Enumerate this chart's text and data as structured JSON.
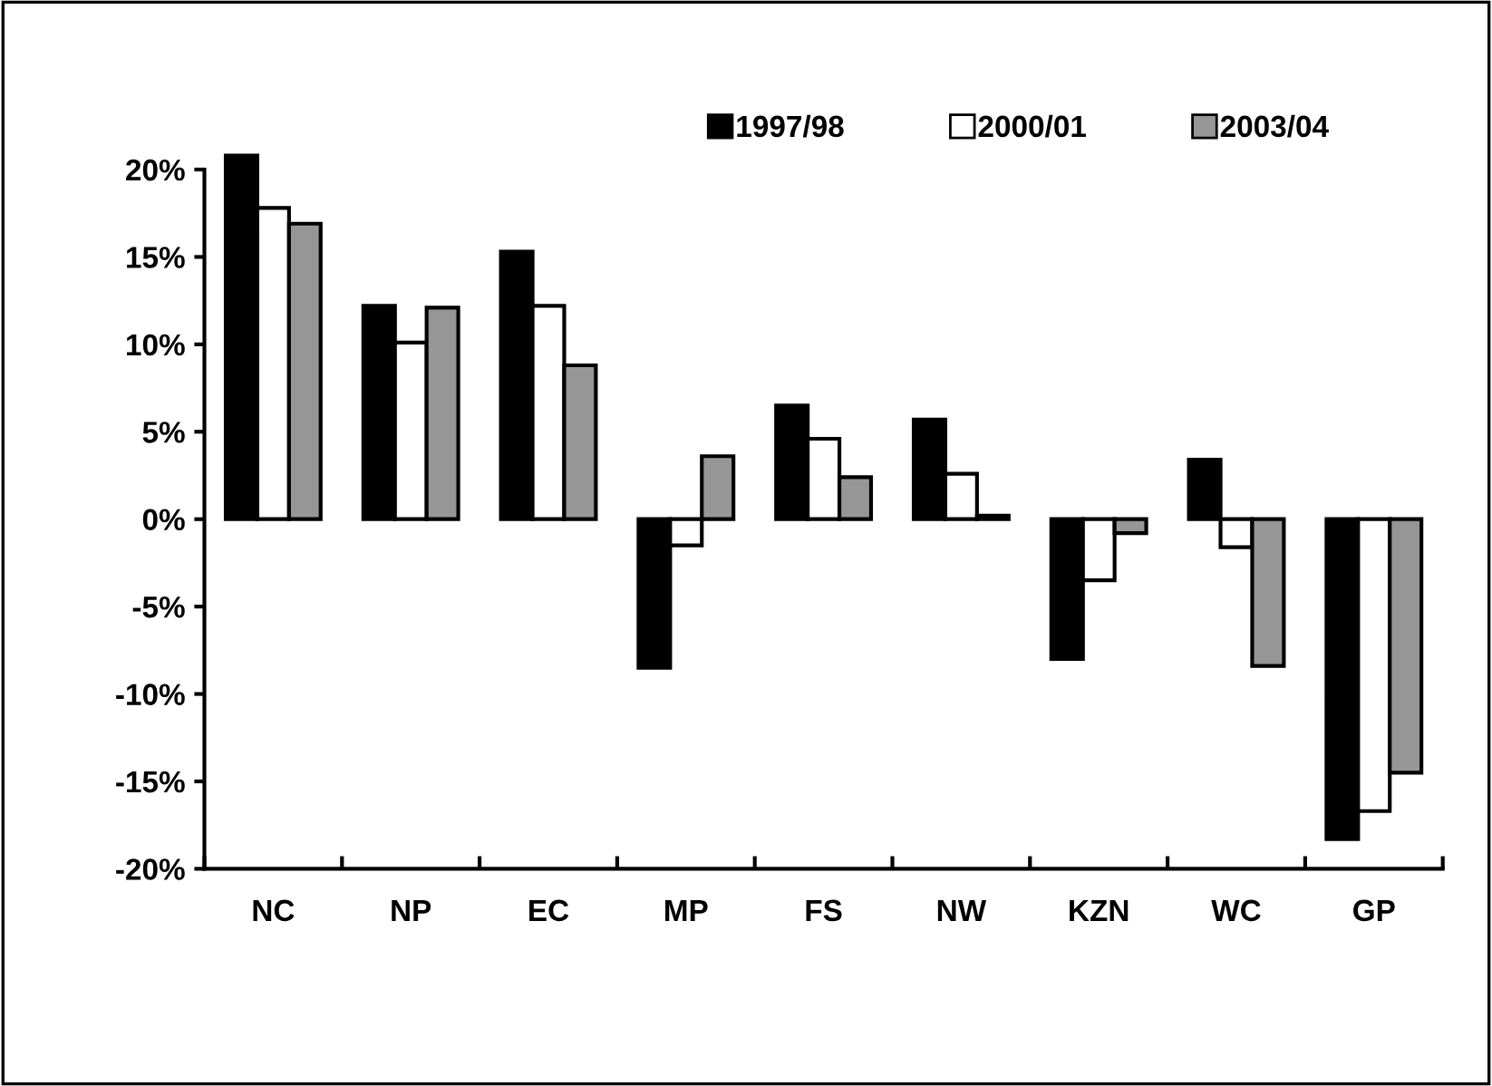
{
  "chart_data": {
    "type": "bar",
    "categories": [
      "NC",
      "NP",
      "EC",
      "MP",
      "FS",
      "NW",
      "KZN",
      "WC",
      "GP"
    ],
    "series": [
      {
        "name": "1997/98",
        "color": "#000000",
        "values": [
          20.8,
          12.2,
          15.3,
          -8.5,
          6.5,
          5.7,
          -8.0,
          3.4,
          -18.3
        ]
      },
      {
        "name": "2000/01",
        "color": "#ffffff",
        "values": [
          17.8,
          10.1,
          12.2,
          -1.5,
          4.6,
          2.6,
          -3.5,
          -1.6,
          -16.7
        ]
      },
      {
        "name": "2003/04",
        "color": "#969696",
        "values": [
          16.9,
          12.1,
          8.8,
          3.6,
          2.4,
          0.2,
          -0.8,
          -8.4,
          -14.5
        ]
      }
    ],
    "ylim": [
      -20,
      21
    ],
    "yticks": [
      {
        "value": -20,
        "label": "-20%"
      },
      {
        "value": -15,
        "label": "-15%"
      },
      {
        "value": -10,
        "label": "-10%"
      },
      {
        "value": -5,
        "label": "-5%"
      },
      {
        "value": 0,
        "label": "0%"
      },
      {
        "value": 5,
        "label": "5%"
      },
      {
        "value": 10,
        "label": "10%"
      },
      {
        "value": 15,
        "label": "15%"
      },
      {
        "value": 20,
        "label": "20%"
      }
    ],
    "grid": false,
    "legend": "top right"
  }
}
